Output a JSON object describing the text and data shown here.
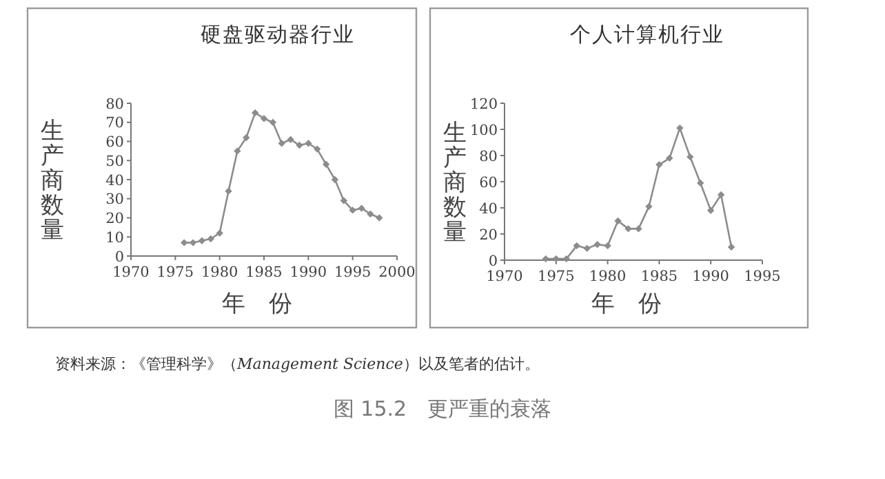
{
  "chart_data": [
    {
      "type": "line",
      "title": "硬盘驱动器行业",
      "xlabel": "年　份",
      "ylabel": "生产商数量",
      "marker": "diamond",
      "grid": false,
      "x": [
        1976,
        1977,
        1978,
        1979,
        1980,
        1981,
        1982,
        1983,
        1984,
        1985,
        1986,
        1987,
        1988,
        1989,
        1990,
        1991,
        1992,
        1993,
        1994,
        1995,
        1996,
        1997,
        1998
      ],
      "series": [
        {
          "color": "#8c8c8c",
          "values": [
            7,
            7,
            8,
            9,
            12,
            34,
            55,
            62,
            75,
            72,
            70,
            59,
            61,
            58,
            59,
            56,
            48,
            40,
            29,
            24,
            25,
            22,
            20
          ]
        }
      ],
      "xlim": [
        1970,
        2000
      ],
      "xticks": [
        1970,
        1975,
        1980,
        1985,
        1990,
        1995,
        2000
      ],
      "ylim": [
        0,
        80
      ],
      "yticks": [
        0,
        10,
        20,
        30,
        40,
        50,
        60,
        70,
        80
      ]
    },
    {
      "type": "line",
      "title": "个人计算机行业",
      "xlabel": "年　份",
      "ylabel": "生产商数量",
      "marker": "diamond",
      "grid": false,
      "x": [
        1974,
        1975,
        1976,
        1977,
        1978,
        1979,
        1980,
        1981,
        1982,
        1983,
        1984,
        1985,
        1986,
        1987,
        1988,
        1989,
        1990,
        1991,
        1992
      ],
      "series": [
        {
          "color": "#8c8c8c",
          "values": [
            1,
            1,
            1,
            11,
            9,
            12,
            11,
            30,
            24,
            24,
            41,
            73,
            78,
            101,
            79,
            59,
            38,
            50,
            10
          ]
        }
      ],
      "xlim": [
        1970,
        1995
      ],
      "xticks": [
        1970,
        1975,
        1980,
        1985,
        1990,
        1995
      ],
      "ylim": [
        0,
        120
      ],
      "yticks": [
        0,
        20,
        40,
        60,
        80,
        100,
        120
      ],
      "annotations": [
        "资料来源：《管理科学》（*Management Science*）以及笔者的估计。",
        "图 15.2　更严重的衰落"
      ]
    }
  ]
}
